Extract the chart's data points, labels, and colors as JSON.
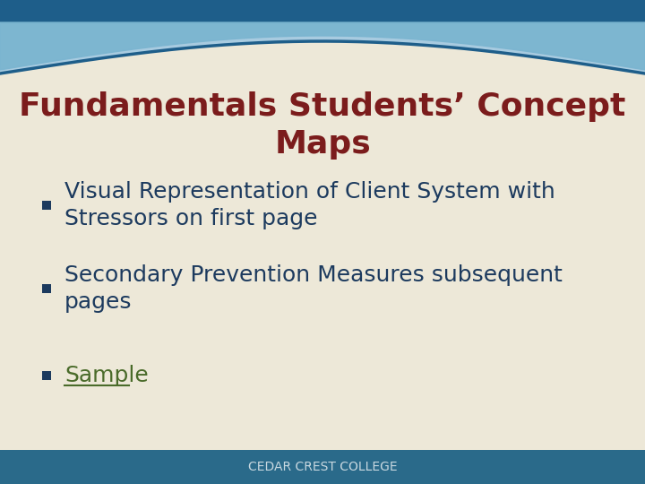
{
  "title_line1": "Fundamentals Students’ Concept",
  "title_line2": "Maps",
  "title_color": "#7B1C1C",
  "title_fontsize": 26,
  "bullet_color": "#1C3A5E",
  "bullet_square_color": "#1C3A5E",
  "bullet_items": [
    "Visual Representation of Client System with\nStressors on first page",
    "Secondary Prevention Measures subsequent\npages",
    "Sample"
  ],
  "bullet_fontsize": 18,
  "sample_color": "#4A6B2A",
  "bg_color": "#EDE8D8",
  "footer_bg_color": "#2A6A8A",
  "footer_text": "CEDAR CREST COLLEGE",
  "footer_text_color": "#C8D8E0",
  "footer_fontsize": 10,
  "sky_color": "#A8CBE0",
  "dark_blue": "#1E5E8A",
  "mid_blue": "#7BB5D0"
}
